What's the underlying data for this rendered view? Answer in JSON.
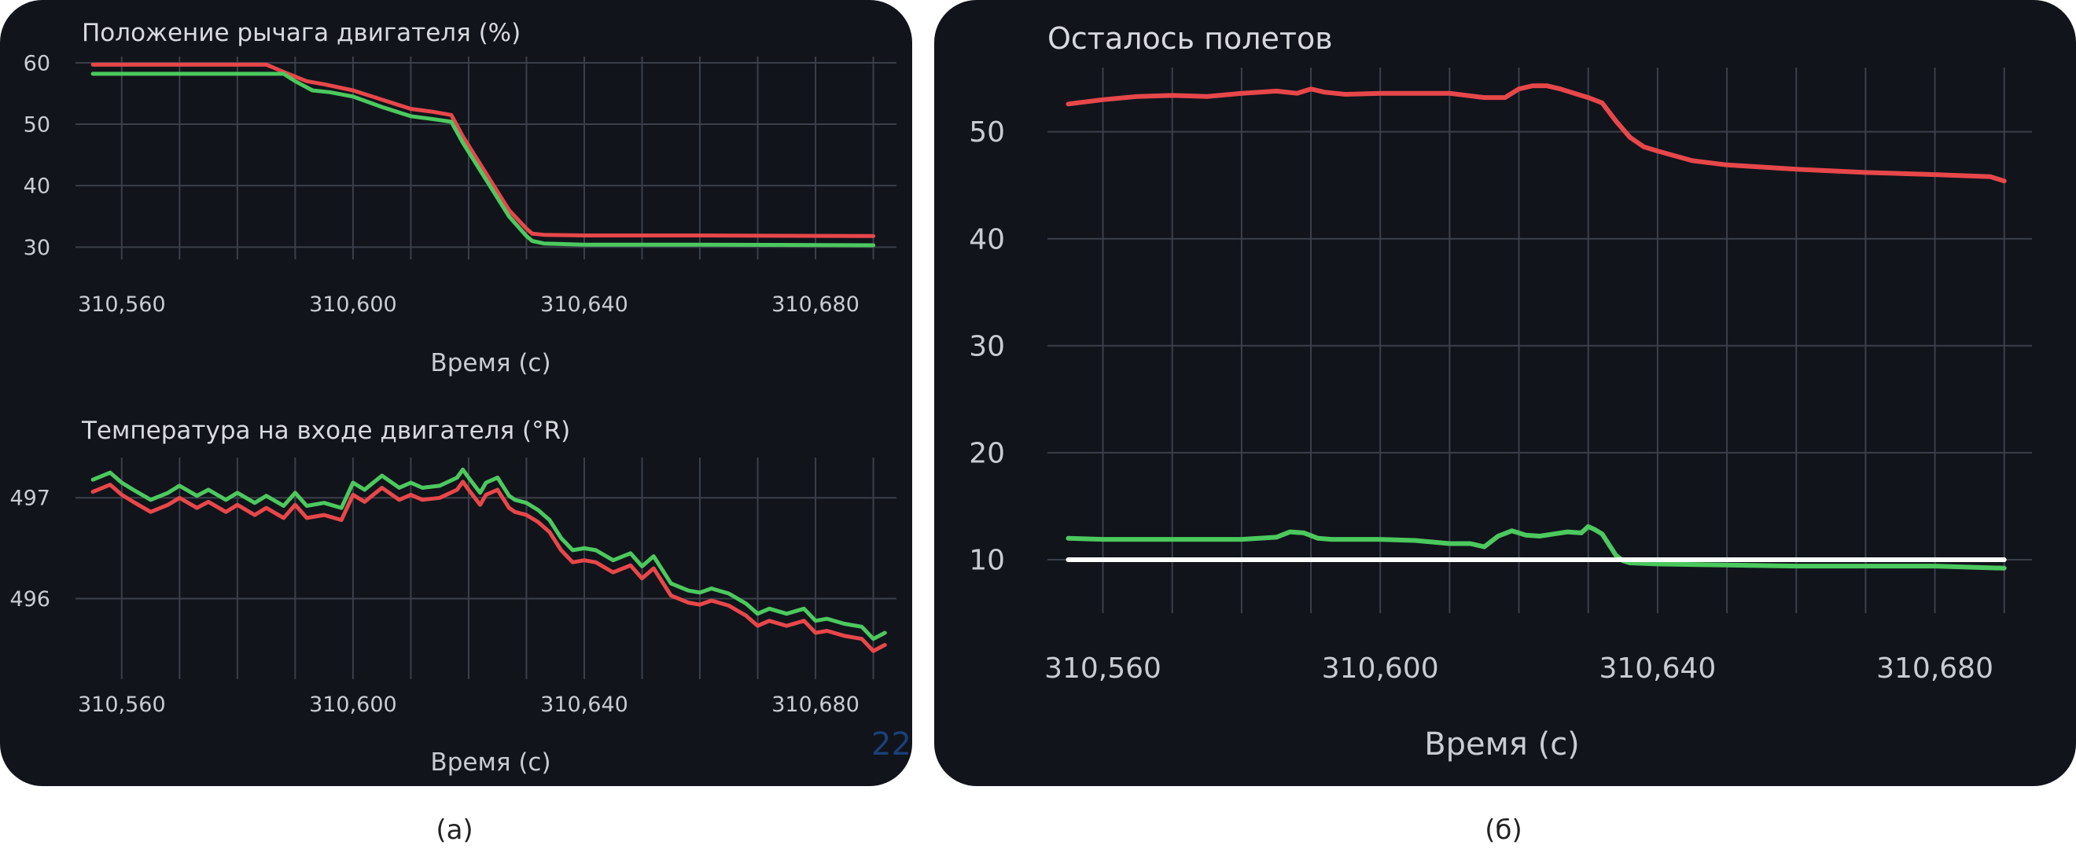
{
  "captions": [
    "(а)",
    "(б)"
  ],
  "page_number": "22",
  "colors": {
    "background": "#11141b",
    "grid": "#3a3f4a",
    "text": "#c9ccd2",
    "red": "#e8474a",
    "green": "#4cc95e",
    "white": "#ffffff"
  },
  "chart_data": [
    {
      "type": "line",
      "title": "Положение рычага двигателя (%)",
      "xlabel": "Время (с)",
      "ylabel": "",
      "xlim": [
        310552,
        310694
      ],
      "ylim": [
        28,
        61
      ],
      "xticks": [
        310560,
        310600,
        310640,
        310680
      ],
      "xtick_labels": [
        "310,560",
        "310,600",
        "310,640",
        "310,680"
      ],
      "yticks": [
        30,
        40,
        50,
        60
      ],
      "ytick_labels": [
        "30",
        "40",
        "50",
        "60"
      ],
      "grid": true,
      "series": [
        {
          "color": "red",
          "x": [
            310555,
            310585,
            310588,
            310592,
            310595,
            310600,
            310605,
            310610,
            310614,
            310617,
            310619,
            310623,
            310627,
            310630,
            310631,
            310633,
            310640,
            310660,
            310690
          ],
          "y": [
            59.7,
            59.7,
            58.5,
            57.0,
            56.5,
            55.5,
            54.0,
            52.5,
            52.0,
            51.5,
            48.0,
            42.0,
            36.0,
            33.0,
            32.2,
            32.0,
            31.9,
            31.9,
            31.8
          ]
        },
        {
          "color": "green",
          "x": [
            310555,
            310588,
            310590,
            310593,
            310596,
            310600,
            310605,
            310610,
            310614,
            310617,
            310619,
            310623,
            310627,
            310630,
            310631,
            310633,
            310640,
            310660,
            310690
          ],
          "y": [
            58.2,
            58.2,
            57.0,
            55.5,
            55.2,
            54.5,
            52.8,
            51.3,
            50.8,
            50.4,
            47.0,
            41.0,
            35.0,
            31.8,
            31.0,
            30.6,
            30.4,
            30.4,
            30.3
          ]
        }
      ]
    },
    {
      "type": "line",
      "title": "Температура на входе двигателя (°R)",
      "xlabel": "Время (с)",
      "ylabel": "",
      "xlim": [
        310552,
        310694
      ],
      "ylim": [
        495.2,
        497.4
      ],
      "xticks": [
        310560,
        310600,
        310640,
        310680
      ],
      "xtick_labels": [
        "310,560",
        "310,600",
        "310,640",
        "310,680"
      ],
      "yticks": [
        496,
        497
      ],
      "ytick_labels": [
        "496",
        "497"
      ],
      "grid": true,
      "series": [
        {
          "color": "green",
          "x": [
            310555,
            310558,
            310560,
            310562,
            310565,
            310568,
            310570,
            310573,
            310575,
            310578,
            310580,
            310583,
            310585,
            310588,
            310590,
            310592,
            310595,
            310598,
            310600,
            310602,
            310605,
            310608,
            310610,
            310612,
            310615,
            310618,
            310619,
            310620,
            310622,
            310623,
            310625,
            310627,
            310628,
            310630,
            310632,
            310634,
            310636,
            310638,
            310640,
            310642,
            310645,
            310648,
            310650,
            310652,
            310655,
            310658,
            310660,
            310662,
            310665,
            310668,
            310670,
            310672,
            310675,
            310678,
            310680,
            310682,
            310685,
            310688,
            310690,
            310692
          ],
          "y": [
            497.18,
            497.25,
            497.15,
            497.08,
            496.98,
            497.05,
            497.12,
            497.02,
            497.08,
            496.98,
            497.05,
            496.95,
            497.02,
            496.92,
            497.05,
            496.92,
            496.95,
            496.9,
            497.15,
            497.08,
            497.22,
            497.1,
            497.15,
            497.1,
            497.12,
            497.2,
            497.28,
            497.2,
            497.05,
            497.15,
            497.2,
            497.02,
            496.98,
            496.95,
            496.88,
            496.78,
            496.6,
            496.48,
            496.5,
            496.48,
            496.38,
            496.45,
            496.32,
            496.42,
            496.15,
            496.08,
            496.06,
            496.1,
            496.05,
            495.95,
            495.85,
            495.9,
            495.85,
            495.9,
            495.78,
            495.8,
            495.75,
            495.72,
            495.6,
            495.66
          ]
        },
        {
          "color": "red",
          "x": [
            310555,
            310558,
            310560,
            310562,
            310565,
            310568,
            310570,
            310573,
            310575,
            310578,
            310580,
            310583,
            310585,
            310588,
            310590,
            310592,
            310595,
            310598,
            310600,
            310602,
            310605,
            310608,
            310610,
            310612,
            310615,
            310618,
            310619,
            310620,
            310622,
            310623,
            310625,
            310627,
            310628,
            310630,
            310632,
            310634,
            310636,
            310638,
            310640,
            310642,
            310645,
            310648,
            310650,
            310652,
            310655,
            310658,
            310660,
            310662,
            310665,
            310668,
            310670,
            310672,
            310675,
            310678,
            310680,
            310682,
            310685,
            310688,
            310690,
            310692
          ],
          "y": [
            497.06,
            497.13,
            497.03,
            496.96,
            496.86,
            496.93,
            497.0,
            496.9,
            496.96,
            496.86,
            496.93,
            496.83,
            496.9,
            496.8,
            496.93,
            496.8,
            496.83,
            496.78,
            497.03,
            496.96,
            497.1,
            496.98,
            497.03,
            496.98,
            497.0,
            497.08,
            497.16,
            497.08,
            496.93,
            497.03,
            497.08,
            496.9,
            496.86,
            496.83,
            496.76,
            496.66,
            496.48,
            496.36,
            496.38,
            496.36,
            496.26,
            496.33,
            496.2,
            496.3,
            496.03,
            495.96,
            495.94,
            495.98,
            495.93,
            495.83,
            495.73,
            495.78,
            495.73,
            495.78,
            495.66,
            495.68,
            495.63,
            495.6,
            495.48,
            495.54
          ]
        }
      ]
    },
    {
      "type": "line",
      "title": "Осталось полетов",
      "xlabel": "Время (с)",
      "ylabel": "",
      "xlim": [
        310552,
        310694
      ],
      "ylim": [
        5,
        56
      ],
      "xticks": [
        310560,
        310600,
        310640,
        310680
      ],
      "xtick_labels": [
        "310,560",
        "310,600",
        "310,640",
        "310,680"
      ],
      "yticks": [
        10,
        20,
        30,
        40,
        50
      ],
      "ytick_labels": [
        "10",
        "20",
        "30",
        "40",
        "50"
      ],
      "grid": true,
      "series": [
        {
          "color": "red",
          "x": [
            310555,
            310560,
            310565,
            310570,
            310575,
            310580,
            310585,
            310588,
            310590,
            310592,
            310595,
            310600,
            310605,
            310610,
            310615,
            310618,
            310620,
            310622,
            310624,
            310626,
            310628,
            310630,
            310632,
            310634,
            310636,
            310638,
            310640,
            310645,
            310650,
            310660,
            310670,
            310680,
            310688,
            310690
          ],
          "y": [
            52.6,
            53.0,
            53.3,
            53.4,
            53.3,
            53.6,
            53.8,
            53.6,
            54.0,
            53.7,
            53.5,
            53.6,
            53.6,
            53.6,
            53.2,
            53.2,
            54.0,
            54.3,
            54.3,
            54.0,
            53.6,
            53.2,
            52.7,
            51.0,
            49.5,
            48.6,
            48.2,
            47.3,
            46.9,
            46.5,
            46.2,
            46.0,
            45.8,
            45.4
          ]
        },
        {
          "color": "green",
          "x": [
            310555,
            310560,
            310570,
            310580,
            310585,
            310587,
            310589,
            310591,
            310593,
            310596,
            310600,
            310605,
            310610,
            310613,
            310615,
            310617,
            310619,
            310621,
            310623,
            310625,
            310627,
            310629,
            310630,
            310631,
            310632,
            310634,
            310635,
            310636,
            310640,
            310650,
            310660,
            310670,
            310680,
            310690
          ],
          "y": [
            12.0,
            11.9,
            11.9,
            11.9,
            12.1,
            12.6,
            12.5,
            12.0,
            11.9,
            11.9,
            11.9,
            11.8,
            11.5,
            11.5,
            11.2,
            12.2,
            12.7,
            12.3,
            12.2,
            12.4,
            12.6,
            12.5,
            13.1,
            12.8,
            12.4,
            10.4,
            9.9,
            9.7,
            9.6,
            9.5,
            9.4,
            9.4,
            9.4,
            9.2
          ]
        },
        {
          "color": "white",
          "x": [
            310555,
            310690
          ],
          "y": [
            10.0,
            10.0
          ]
        }
      ]
    }
  ]
}
